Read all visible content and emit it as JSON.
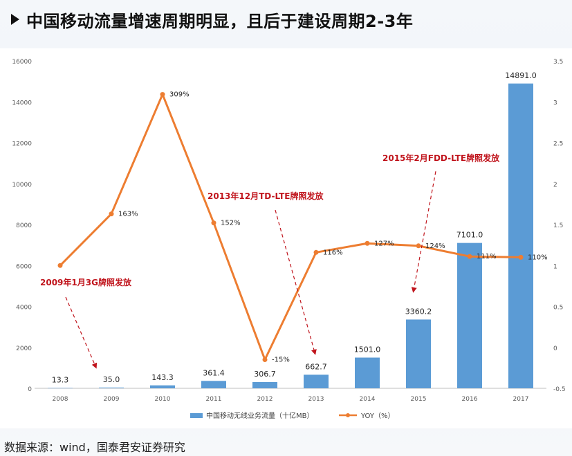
{
  "title": "中国移动流量增速周期明显，且后于建设周期2-3年",
  "source": "数据来源：wind，国泰君安证券研究",
  "colors": {
    "bar": "#5b9bd5",
    "line": "#ed7d31",
    "annotation": "#c0141c"
  },
  "chart_data": {
    "type": "bar",
    "categories": [
      "2008",
      "2009",
      "2010",
      "2011",
      "2012",
      "2013",
      "2014",
      "2015",
      "2016",
      "2017"
    ],
    "series": [
      {
        "name": "中国移动无线业务流量（十亿MB）",
        "type": "bar",
        "axis": "left",
        "values": [
          13.3,
          35.0,
          143.3,
          361.4,
          306.7,
          662.7,
          1501.0,
          3360.2,
          7101.0,
          14891.0
        ],
        "labels": [
          "13.3",
          "35.0",
          "143.3",
          "361.4",
          "306.7",
          "662.7",
          "1501.0",
          "3360.2",
          "7101.0",
          "14891.0"
        ]
      },
      {
        "name": "YOY（%）",
        "type": "line",
        "axis": "right",
        "values": [
          1.0,
          1.63,
          3.09,
          1.52,
          -0.15,
          1.16,
          1.27,
          1.24,
          1.11,
          1.1
        ],
        "labels": [
          "",
          "163%",
          "309%",
          "152%",
          "-15%",
          "116%",
          "127%",
          "124%",
          "111%",
          "110%"
        ]
      }
    ],
    "y_left": {
      "range": [
        0,
        16000
      ],
      "ticks": [
        "0",
        "2000",
        "4000",
        "6000",
        "8000",
        "10000",
        "12000",
        "14000",
        "16000"
      ]
    },
    "y_right": {
      "range": [
        -0.5,
        3.5
      ],
      "ticks": [
        "-0.5",
        "0",
        "0.5",
        "1",
        "1.5",
        "2",
        "2.5",
        "3",
        "3.5"
      ]
    },
    "grid": false,
    "legend_position": "bottom",
    "annotations": [
      {
        "text": "2009年1月3G牌照发放",
        "category": "2009"
      },
      {
        "text": "2013年12月TD-LTE牌照发放",
        "category": "2013"
      },
      {
        "text": "2015年2月FDD-LTE牌照发放",
        "category": "2015"
      }
    ]
  }
}
